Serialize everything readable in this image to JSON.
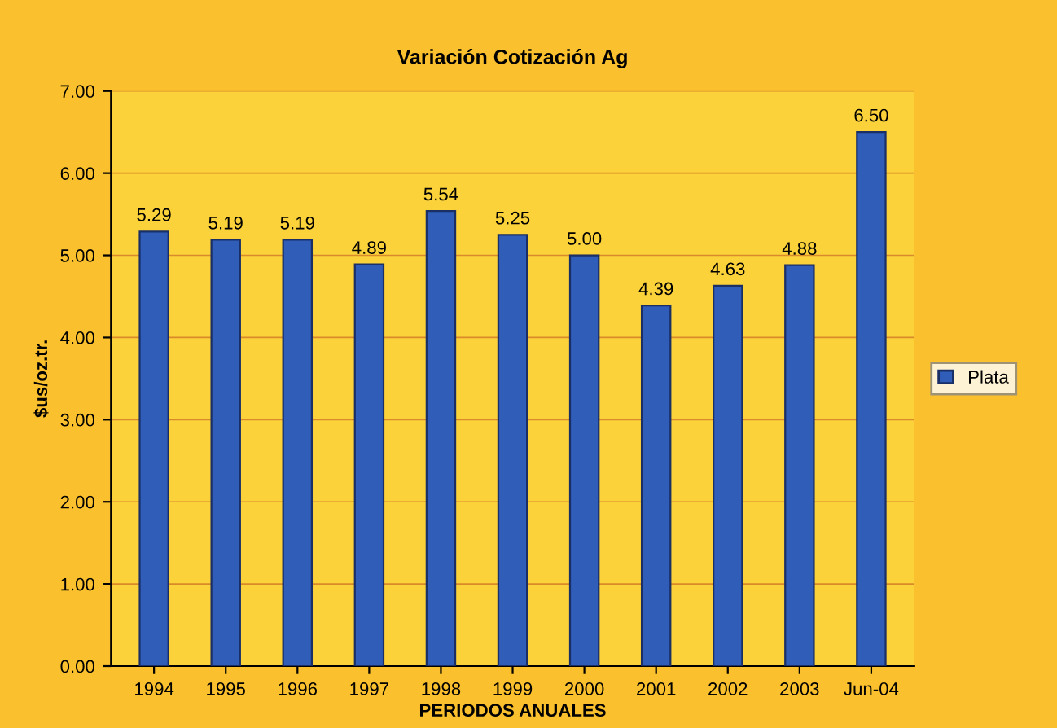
{
  "chart_data": {
    "type": "bar",
    "title": "Variación Cotización Ag",
    "xlabel": "PERIODOS ANUALES",
    "ylabel": "$us/oz.tr.",
    "categories": [
      "1994",
      "1995",
      "1996",
      "1997",
      "1998",
      "1999",
      "2000",
      "2001",
      "2002",
      "2003",
      "Jun-04"
    ],
    "series": [
      {
        "name": "Plata",
        "color": "#2f5db8",
        "values": [
          5.29,
          5.19,
          5.19,
          4.89,
          5.54,
          5.25,
          5.0,
          4.39,
          4.63,
          4.88,
          6.5
        ],
        "value_labels": [
          "5.29",
          "5.19",
          "5.19",
          "4.89",
          "5.54",
          "5.25",
          "5.00",
          "4.39",
          "4.63",
          "4.88",
          "6.50"
        ]
      }
    ],
    "ylim": [
      0,
      7
    ],
    "yticks": [
      {
        "value": 0,
        "label": "0.00"
      },
      {
        "value": 1,
        "label": "1.00"
      },
      {
        "value": 2,
        "label": "2.00"
      },
      {
        "value": 3,
        "label": "3.00"
      },
      {
        "value": 4,
        "label": "4.00"
      },
      {
        "value": 5,
        "label": "5.00"
      },
      {
        "value": 6,
        "label": "6.00"
      },
      {
        "value": 7,
        "label": "7.00"
      }
    ],
    "grid": "y",
    "legend": "right"
  }
}
